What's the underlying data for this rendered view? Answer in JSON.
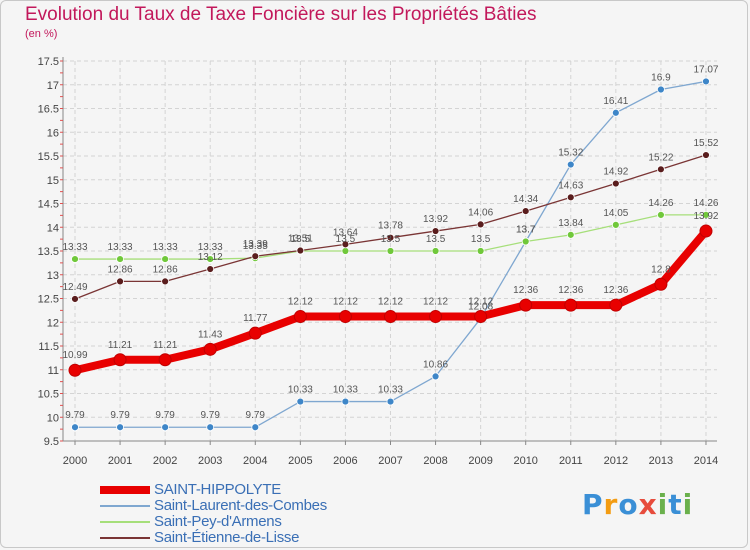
{
  "chart_data": {
    "type": "line",
    "title": "Evolution du Taux de Taxe Foncière sur les Propriétés Bâties",
    "ylabel": "(en %)",
    "xlabel": "",
    "ylim": [
      9.5,
      17.5
    ],
    "yticks": [
      "9.5",
      "10",
      "10.5",
      "11",
      "11.5",
      "12",
      "12.5",
      "13",
      "13.5",
      "14",
      "14.5",
      "15",
      "15.5",
      "16",
      "16.5",
      "17",
      "17.5"
    ],
    "categories": [
      "2000",
      "2001",
      "2002",
      "2003",
      "2004",
      "2005",
      "2006",
      "2007",
      "2008",
      "2009",
      "2010",
      "2011",
      "2012",
      "2013",
      "2014"
    ],
    "series": [
      {
        "name": "Saint-Laurent-des-Combes",
        "color": "#7fa7d0",
        "marker": "#3e86c8",
        "width": 1.3,
        "values": [
          9.79,
          9.79,
          9.79,
          9.79,
          9.79,
          10.33,
          10.33,
          10.33,
          10.86,
          12.08,
          13.7,
          15.32,
          16.41,
          16.9,
          17.07
        ],
        "labels": [
          "9.79",
          "9.79",
          "9.79",
          "9.79",
          "9.79",
          "10.33",
          "10.33",
          "10.33",
          "10.86",
          "12.08",
          "13.7",
          "15.32",
          "16.41",
          "16.9",
          "17.07"
        ]
      },
      {
        "name": "Saint-Pey-d'Armens",
        "color": "#a6df7a",
        "marker": "#70c83a",
        "width": 1.3,
        "values": [
          13.33,
          13.33,
          13.33,
          13.33,
          13.35,
          13.5,
          13.5,
          13.5,
          13.5,
          13.5,
          13.7,
          13.84,
          14.05,
          14.26,
          14.26
        ],
        "labels": [
          "13.33",
          "13.33",
          "13.33",
          "13.33",
          "13.35",
          "13.5",
          "13.5",
          "13.5",
          "13.5",
          "13.5",
          "13.7",
          "13.84",
          "14.05",
          "14.26",
          "14.26"
        ]
      },
      {
        "name": "Saint-Étienne-de-Lisse",
        "color": "#7a3535",
        "marker": "#5a1d1d",
        "width": 1.3,
        "values": [
          12.49,
          12.86,
          12.86,
          13.12,
          13.39,
          13.51,
          13.64,
          13.78,
          13.92,
          14.06,
          14.34,
          14.63,
          14.92,
          15.22,
          15.52
        ],
        "labels": [
          "12.49",
          "12.86",
          "12.86",
          "13.12",
          "13.39",
          "13.51",
          "13.64",
          "13.78",
          "13.92",
          "14.06",
          "14.34",
          "14.63",
          "14.92",
          "15.22",
          "15.52"
        ]
      },
      {
        "name": "SAINT-HIPPOLYTE",
        "color": "#e80000",
        "marker": "#e80000",
        "width": 8,
        "values": [
          10.99,
          11.21,
          11.21,
          11.43,
          11.77,
          12.12,
          12.12,
          12.12,
          12.12,
          12.12,
          12.36,
          12.36,
          12.36,
          12.8,
          13.92
        ],
        "labels": [
          "10.99",
          "11.21",
          "11.21",
          "11.43",
          "11.77",
          "12.12",
          "12.12",
          "12.12",
          "12.12",
          "12.12",
          "12.36",
          "12.36",
          "12.36",
          "12.8",
          "13.92"
        ]
      }
    ],
    "legend": {
      "placement": "bottom-left",
      "items": [
        {
          "label": "SAINT-HIPPOLYTE",
          "color": "#e80000",
          "thick": true
        },
        {
          "label": "Saint-Laurent-des-Combes",
          "color": "#7fa7d0",
          "thick": false
        },
        {
          "label": "Saint-Pey-d'Armens",
          "color": "#a6df7a",
          "thick": false
        },
        {
          "label": "Saint-Étienne-de-Lisse",
          "color": "#7a3535",
          "thick": false
        }
      ]
    },
    "grid": true
  },
  "logo": {
    "letters": [
      "P",
      "r",
      "o",
      "x",
      "i",
      "t",
      "i"
    ],
    "colors": [
      "#3a8fd6",
      "#f39c12",
      "#3a8fd6",
      "#e74c3c",
      "#6ab04c",
      "#3a8fd6",
      "#6ab04c"
    ]
  }
}
